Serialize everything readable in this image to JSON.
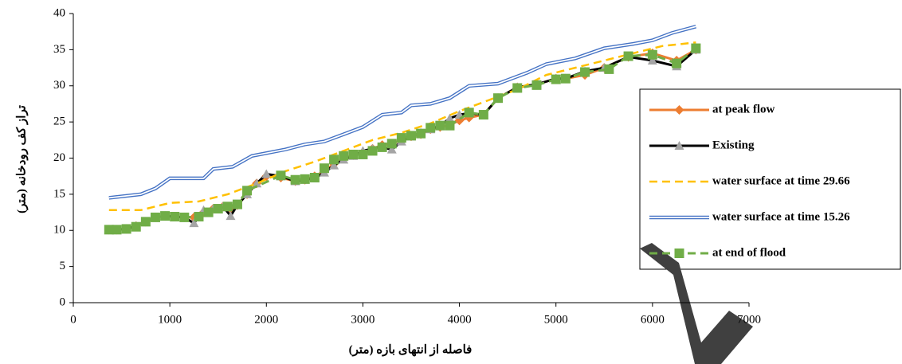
{
  "chart_data": {
    "type": "line",
    "x_label": "فاصله از انتهای بازه (متر)",
    "y_label": "تراز کف رودخانه (متر)",
    "xlim": [
      0,
      7000
    ],
    "xticks": [
      0,
      1000,
      2000,
      3000,
      4000,
      5000,
      6000,
      7000
    ],
    "ylim": [
      0,
      40
    ],
    "yticks": [
      0,
      5,
      10,
      15,
      20,
      25,
      30,
      35,
      40
    ],
    "grid": false,
    "legend": "right",
    "series": [
      {
        "name": "at peak flow",
        "color": "#ed7d31",
        "style": "line-diamond",
        "x": [
          370,
          450,
          550,
          650,
          750,
          850,
          950,
          1050,
          1150,
          1250,
          1350,
          1450,
          1550,
          1630,
          1700,
          1800,
          1900,
          2000,
          2150,
          2300,
          2400,
          2500,
          2600,
          2700,
          2800,
          2900,
          3000,
          3100,
          3200,
          3300,
          3400,
          3500,
          3600,
          3700,
          3800,
          3900,
          4000,
          4100,
          4250,
          4400,
          4600,
          4800,
          5000,
          5100,
          5300,
          5500,
          5750,
          6000,
          6250,
          6450
        ],
        "values": [
          10.1,
          10.1,
          10.2,
          10.6,
          11.2,
          11.8,
          12,
          11.9,
          11.8,
          11.8,
          12.5,
          13,
          13.3,
          13,
          13.5,
          15,
          16.5,
          17.5,
          17.3,
          16.8,
          17,
          17.5,
          18.2,
          19.2,
          20,
          20.4,
          20.8,
          21.3,
          21.8,
          22,
          22.5,
          23,
          23.3,
          24,
          24.3,
          24.6,
          25.2,
          25.6,
          26,
          28.3,
          29.8,
          30.2,
          31,
          31,
          31.5,
          32.5,
          34,
          34.5,
          33.5,
          35
        ]
      },
      {
        "name": "Existing",
        "color": "#000000",
        "marker_color": "#a5a5a5",
        "style": "line-triangle",
        "x": [
          370,
          450,
          550,
          650,
          750,
          850,
          950,
          1050,
          1150,
          1250,
          1350,
          1450,
          1550,
          1630,
          1700,
          1800,
          1900,
          2000,
          2150,
          2300,
          2400,
          2500,
          2600,
          2700,
          2800,
          2900,
          3000,
          3100,
          3200,
          3300,
          3400,
          3500,
          3600,
          3700,
          3800,
          3900,
          4000,
          4100,
          4250,
          4400,
          4600,
          4800,
          5000,
          5100,
          5300,
          5500,
          5750,
          6000,
          6250,
          6450
        ],
        "values": [
          10.1,
          10.1,
          10.2,
          10.6,
          11.2,
          11.8,
          12,
          11.9,
          11.8,
          11,
          12.8,
          13,
          13.3,
          12,
          13.5,
          15,
          16.5,
          17.8,
          17.5,
          16.8,
          17,
          17.2,
          18,
          19,
          19.8,
          20.3,
          21,
          21.3,
          21.5,
          21.2,
          22.3,
          23,
          23.5,
          24,
          24.5,
          25.5,
          26,
          26.2,
          26,
          28.3,
          29.8,
          30.2,
          31,
          31,
          32,
          32.5,
          34,
          33.5,
          32.7,
          35
        ]
      },
      {
        "name": "water surface at time 29.66",
        "color": "#ffc000",
        "style": "dashed",
        "x": [
          370,
          700,
          1000,
          1300,
          1600,
          1900,
          2200,
          2500,
          2800,
          3100,
          3400,
          3700,
          4000,
          4300,
          4600,
          4900,
          5200,
          5500,
          5800,
          6100,
          6450
        ],
        "values": [
          12.8,
          12.8,
          13.8,
          14,
          15,
          16.5,
          18.2,
          19.5,
          21,
          22.5,
          23.5,
          24.8,
          26.5,
          28,
          29.5,
          31.5,
          32.5,
          33.5,
          34.5,
          35.5,
          36
        ]
      },
      {
        "name": "water surface at time 15.26",
        "color": "#4472c4",
        "style": "double",
        "x": [
          370,
          700,
          850,
          1000,
          1350,
          1450,
          1650,
          1850,
          2200,
          2400,
          2600,
          2800,
          3000,
          3200,
          3400,
          3500,
          3700,
          3900,
          4100,
          4400,
          4700,
          4900,
          5200,
          5500,
          5800,
          6000,
          6200,
          6450
        ],
        "values": [
          14.5,
          15,
          15.8,
          17.2,
          17.2,
          18.5,
          18.8,
          20.3,
          21.2,
          21.9,
          22.3,
          23.3,
          24.3,
          26,
          26.3,
          27.3,
          27.5,
          28.3,
          30,
          30.3,
          31.8,
          33,
          33.8,
          35.2,
          35.8,
          36.3,
          37.3,
          38.2
        ]
      },
      {
        "name": "at end of flood",
        "color": "#70ad47",
        "style": "dashed-square",
        "x": [
          370,
          450,
          550,
          650,
          750,
          850,
          950,
          1050,
          1150,
          1300,
          1400,
          1500,
          1600,
          1700,
          1800,
          2150,
          2300,
          2400,
          2500,
          2600,
          2700,
          2800,
          2900,
          3000,
          3100,
          3200,
          3300,
          3400,
          3500,
          3600,
          3700,
          3800,
          3900,
          4100,
          4250,
          4400,
          4600,
          4800,
          5000,
          5100,
          5300,
          5550,
          5750,
          6000,
          6250,
          6450
        ],
        "values": [
          10.1,
          10.1,
          10.2,
          10.5,
          11.2,
          11.8,
          12,
          11.9,
          11.8,
          11.9,
          12.5,
          13,
          13.3,
          13.6,
          15.5,
          17.6,
          17,
          17.1,
          17.3,
          18.6,
          19.8,
          20.3,
          20.5,
          20.5,
          21,
          21.5,
          22,
          22.8,
          23.1,
          23.4,
          24.2,
          24.5,
          24.5,
          26.3,
          26,
          28.3,
          29.7,
          30.1,
          30.9,
          31,
          31.9,
          32.3,
          34.1,
          34.3,
          33.1,
          35.2
        ]
      }
    ]
  }
}
